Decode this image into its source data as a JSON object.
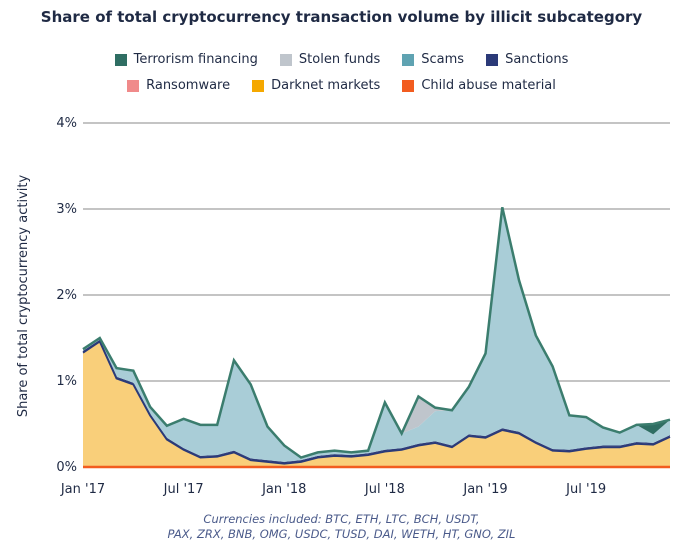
{
  "chart_data": {
    "type": "area",
    "title": "Share of total cryptocurrency transaction volume by illicit subcategory",
    "ylabel": "Share of total cryptocurrency activity",
    "xlabel": "",
    "x_tick_labels": [
      "Jan '17",
      "Jul '17",
      "Jan '18",
      "Jul '18",
      "Jan '19",
      "Jul '19"
    ],
    "y_tick_labels": [
      "0%",
      "1%",
      "2%",
      "3%",
      "4%"
    ],
    "ylim": [
      0,
      4
    ],
    "grid": true,
    "legend_placement": "top",
    "x": [
      "2017-01",
      "2017-02",
      "2017-03",
      "2017-04",
      "2017-05",
      "2017-06",
      "2017-07",
      "2017-08",
      "2017-09",
      "2017-10",
      "2017-11",
      "2017-12",
      "2018-01",
      "2018-02",
      "2018-03",
      "2018-04",
      "2018-05",
      "2018-06",
      "2018-07",
      "2018-08",
      "2018-09",
      "2018-10",
      "2018-11",
      "2018-12",
      "2019-01",
      "2019-02",
      "2019-03",
      "2019-04",
      "2019-05",
      "2019-06",
      "2019-07",
      "2019-08",
      "2019-09",
      "2019-10",
      "2019-11",
      "2019-12"
    ],
    "series": [
      {
        "name": "Child abuse material",
        "color": "#f25c1f",
        "values": [
          0.01,
          0.01,
          0.01,
          0.01,
          0.01,
          0.01,
          0.01,
          0.01,
          0.01,
          0.01,
          0.01,
          0.01,
          0.01,
          0.01,
          0.01,
          0.01,
          0.01,
          0.01,
          0.01,
          0.01,
          0.01,
          0.01,
          0.01,
          0.01,
          0.01,
          0.01,
          0.01,
          0.01,
          0.01,
          0.01,
          0.01,
          0.01,
          0.01,
          0.01,
          0.01,
          0.01
        ]
      },
      {
        "name": "Darknet markets",
        "color": "#f9cf7a",
        "values": [
          1.32,
          1.45,
          1.02,
          0.95,
          0.59,
          0.31,
          0.19,
          0.1,
          0.11,
          0.16,
          0.07,
          0.05,
          0.03,
          0.05,
          0.1,
          0.12,
          0.11,
          0.13,
          0.17,
          0.19,
          0.24,
          0.27,
          0.22,
          0.35,
          0.33,
          0.42,
          0.38,
          0.27,
          0.18,
          0.17,
          0.2,
          0.22,
          0.22,
          0.26,
          0.25,
          0.34
        ]
      },
      {
        "name": "Ransomware",
        "color": "#f08a8a",
        "values": [
          0.01,
          0.01,
          0.01,
          0.01,
          0.01,
          0.01,
          0.01,
          0.01,
          0.01,
          0.01,
          0.01,
          0.01,
          0.01,
          0.01,
          0.01,
          0.01,
          0.01,
          0.01,
          0.01,
          0.01,
          0.01,
          0.01,
          0.01,
          0.01,
          0.01,
          0.01,
          0.01,
          0.01,
          0.01,
          0.01,
          0.01,
          0.01,
          0.01,
          0.01,
          0.01,
          0.01
        ]
      },
      {
        "name": "Sanctions",
        "color": "#2b3a78",
        "values": [
          0.01,
          0.01,
          0.01,
          0.01,
          0.01,
          0.01,
          0.01,
          0.01,
          0.01,
          0.01,
          0.01,
          0.01,
          0.01,
          0.01,
          0.01,
          0.01,
          0.01,
          0.01,
          0.01,
          0.01,
          0.01,
          0.01,
          0.01,
          0.01,
          0.01,
          0.01,
          0.01,
          0.01,
          0.01,
          0.01,
          0.01,
          0.01,
          0.01,
          0.01,
          0.01,
          0.01
        ]
      },
      {
        "name": "Scams",
        "color": "#a9cdd7",
        "values": [
          0.02,
          0.02,
          0.1,
          0.14,
          0.08,
          0.14,
          0.34,
          0.36,
          0.35,
          1.05,
          0.86,
          0.39,
          0.19,
          0.03,
          0.04,
          0.04,
          0.03,
          0.03,
          0.55,
          0.17,
          0.2,
          0.35,
          0.41,
          0.55,
          0.96,
          2.57,
          1.76,
          1.23,
          0.96,
          0.4,
          0.35,
          0.21,
          0.15,
          0.2,
          0.1,
          0.18
        ]
      },
      {
        "name": "Stolen funds",
        "color": "#bfc5cc",
        "values": [
          0,
          0,
          0,
          0,
          0,
          0,
          0,
          0,
          0,
          0,
          0,
          0,
          0,
          0,
          0,
          0,
          0,
          0,
          0,
          0,
          0.35,
          0.04,
          0,
          0,
          0,
          0,
          0,
          0,
          0,
          0,
          0,
          0,
          0,
          0,
          0,
          0
        ]
      },
      {
        "name": "Terrorism financing",
        "color": "#2f6e63",
        "values": [
          0,
          0,
          0,
          0,
          0,
          0,
          0,
          0,
          0,
          0,
          0,
          0,
          0,
          0,
          0,
          0,
          0,
          0,
          0,
          0,
          0,
          0,
          0,
          0,
          0,
          0,
          0,
          0,
          0,
          0,
          0,
          0,
          0,
          0,
          0.12,
          0
        ]
      }
    ],
    "outline_color": "#3b7d6e",
    "baseline_color": "#f25c1f",
    "note_line1": "Currencies included: BTC, ETH, LTC, BCH, USDT,",
    "note_line2": "PAX, ZRX, BNB, OMG, USDC, TUSD, DAI, WETH, HT, GNO, ZIL"
  },
  "legend": {
    "row1": [
      {
        "label": "Terrorism financing",
        "color": "#2f6e63"
      },
      {
        "label": "Stolen funds",
        "color": "#bfc5cc"
      },
      {
        "label": "Scams",
        "color": "#5fa3b2"
      },
      {
        "label": "Sanctions",
        "color": "#2b3a78"
      }
    ],
    "row2": [
      {
        "label": "Ransomware",
        "color": "#f08a8a"
      },
      {
        "label": "Darknet markets",
        "color": "#f5a800"
      },
      {
        "label": "Child abuse material",
        "color": "#f25c1f"
      }
    ]
  }
}
